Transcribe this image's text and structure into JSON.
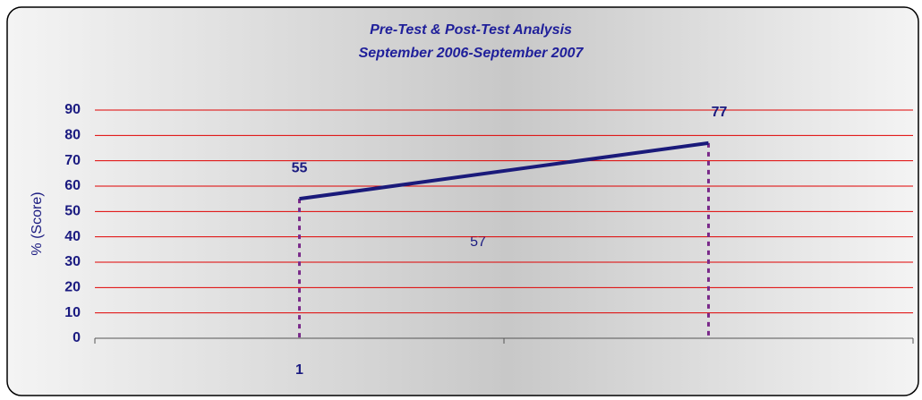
{
  "chart_data": {
    "type": "line",
    "title": "Pre-Test & Post-Test Analysis",
    "subtitle": "September 2006-September 2007",
    "y_label": "% (Score)",
    "categories": [
      "1",
      null
    ],
    "series": [
      {
        "color": "#1a1a7a",
        "values": [
          55,
          77
        ]
      }
    ],
    "annotation": "57",
    "ylim": [
      0,
      90
    ],
    "yticks": [
      0,
      10,
      20,
      30,
      40,
      50,
      60,
      70,
      80,
      90
    ],
    "grid": true,
    "grid_color": "#e00000",
    "drop_line_color": "#7a2a8a"
  }
}
